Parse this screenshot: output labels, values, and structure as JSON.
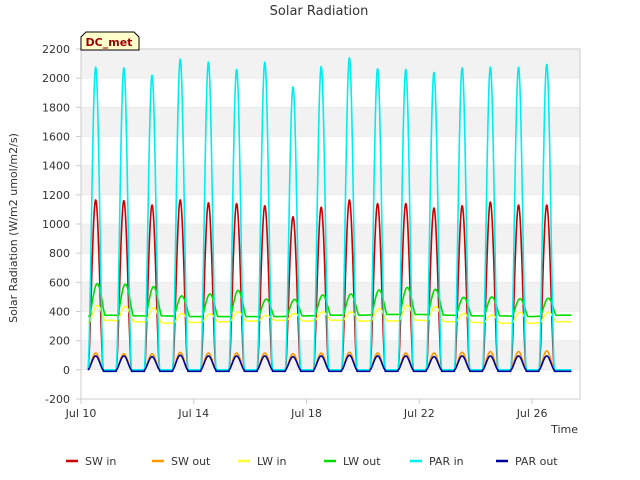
{
  "chart_data": {
    "type": "line",
    "title": "Solar Radiation",
    "xlabel": "Time",
    "ylabel": "Solar Radiation (W/m2 umol/m2/s)",
    "annotation": "DC_met",
    "x_range_days": [
      10,
      27.7
    ],
    "ylim": [
      -200,
      2200
    ],
    "y_ticks": [
      -200,
      0,
      200,
      400,
      600,
      800,
      1000,
      1200,
      1400,
      1600,
      1800,
      2000,
      2200
    ],
    "x_ticks": [
      {
        "day": 10,
        "label": "Jul 10"
      },
      {
        "day": 14,
        "label": "Jul 14"
      },
      {
        "day": 18,
        "label": "Jul 18"
      },
      {
        "day": 22,
        "label": "Jul 22"
      },
      {
        "day": 26,
        "label": "Jul 26"
      }
    ],
    "grid": "alternating horizontal bands",
    "legend_position": "bottom",
    "days": [
      10,
      11,
      12,
      13,
      14,
      15,
      16,
      17,
      18,
      19,
      20,
      21,
      22,
      23,
      24,
      25,
      26,
      27
    ],
    "series": [
      {
        "name": "SW in",
        "color": "#cc0000",
        "kind": "peak",
        "night": -5,
        "peaks": [
          1165,
          1160,
          1130,
          1165,
          1145,
          1140,
          1125,
          1050,
          1115,
          1165,
          1140,
          1140,
          1110,
          1125,
          1150,
          1130,
          1130
        ]
      },
      {
        "name": "SW out",
        "color": "#ff9900",
        "kind": "peak",
        "night": 0,
        "peaks": [
          115,
          110,
          110,
          120,
          115,
          115,
          115,
          110,
          115,
          120,
          115,
          115,
          115,
          120,
          125,
          125,
          130
        ]
      },
      {
        "name": "LW in",
        "color": "#ffff33",
        "kind": "smooth",
        "base": [
          320,
          340,
          330,
          320,
          325,
          330,
          335,
          340,
          335,
          340,
          335,
          335,
          340,
          330,
          325,
          320,
          320,
          330
        ],
        "peaks": [
          430,
          440,
          430,
          385,
          380,
          395,
          370,
          390,
          395,
          400,
          420,
          440,
          440,
          390,
          380,
          395,
          390
        ]
      },
      {
        "name": "LW out",
        "color": "#00dd00",
        "kind": "smooth",
        "base": [
          365,
          375,
          370,
          370,
          365,
          365,
          365,
          365,
          370,
          375,
          375,
          380,
          380,
          375,
          370,
          370,
          365,
          375
        ],
        "peaks": [
          585,
          590,
          570,
          510,
          520,
          545,
          485,
          480,
          510,
          520,
          545,
          565,
          555,
          500,
          500,
          490,
          485
        ]
      },
      {
        "name": "PAR in",
        "color": "#00eeee",
        "kind": "peak",
        "night": 0,
        "peaks": [
          2075,
          2070,
          2020,
          2130,
          2110,
          2060,
          2110,
          1940,
          2080,
          2140,
          2065,
          2060,
          2040,
          2070,
          2075,
          2075,
          2095
        ]
      },
      {
        "name": "PAR out",
        "color": "#000099",
        "kind": "peak",
        "night": -10,
        "peaks": [
          95,
          95,
          90,
          100,
          95,
          95,
          95,
          90,
          95,
          100,
          95,
          95,
          90,
          95,
          95,
          95,
          95
        ]
      }
    ]
  }
}
